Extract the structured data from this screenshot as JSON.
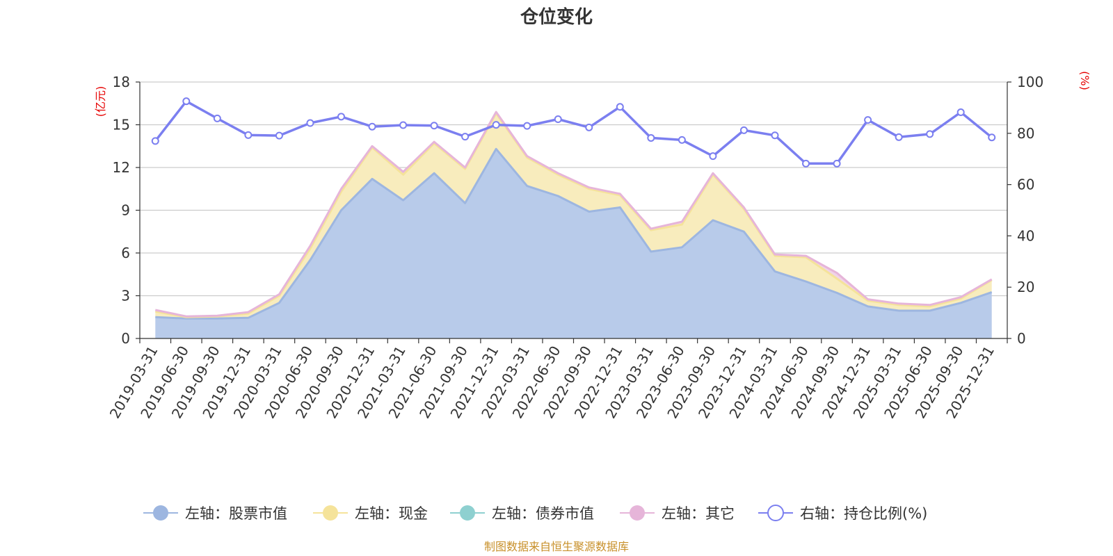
{
  "colors": {
    "stock": "#9db6e0",
    "stock_fill": "#b8cbea",
    "cash": "#f5e39a",
    "cash_fill": "#f8ecbd",
    "bond": "#8ed0d0",
    "other": "#e6b5d9",
    "ratio": "#7b7ff0",
    "grid": "#cccccc",
    "axis": "#333333",
    "unit": "#e60000",
    "source": "#c8902a"
  },
  "chart_data": {
    "type": "area",
    "title": "仓位变化",
    "left_unit": "(亿元)",
    "right_unit": "(%)",
    "left_axis": {
      "min": 0,
      "max": 18,
      "ticks": [
        "0",
        "3",
        "6",
        "9",
        "12",
        "15",
        "18"
      ]
    },
    "right_axis": {
      "min": 0,
      "max": 100,
      "ticks": [
        "0",
        "20",
        "40",
        "60",
        "80",
        "100"
      ]
    },
    "categories": [
      "2019-03-31",
      "2019-06-30",
      "2019-09-30",
      "2019-12-31",
      "2020-03-31",
      "2020-06-30",
      "2020-09-30",
      "2020-12-31",
      "2021-03-31",
      "2021-06-30",
      "2021-09-30",
      "2021-12-31",
      "2022-03-31",
      "2022-06-30",
      "2022-09-30",
      "2022-12-31",
      "2023-03-31",
      "2023-06-30",
      "2023-09-30",
      "2023-12-31",
      "2024-03-31",
      "2024-06-30",
      "2024-09-30",
      "2024-12-31",
      "2025-03-31",
      "2025-06-30",
      "2025-09-30",
      "2025-12-31"
    ],
    "series": [
      {
        "name": "左轴：股票市值",
        "axis": "left",
        "kind": "stacked-area",
        "values": [
          1.5,
          1.4,
          1.4,
          1.45,
          2.5,
          5.5,
          9.0,
          11.2,
          9.7,
          11.6,
          9.5,
          13.3,
          10.7,
          10.0,
          8.9,
          9.2,
          6.1,
          6.4,
          8.3,
          7.5,
          4.7,
          4.0,
          3.2,
          2.25,
          1.95,
          1.95,
          2.5,
          3.25
        ]
      },
      {
        "name": "左轴：现金",
        "axis": "left",
        "kind": "stacked-area",
        "values": [
          0.4,
          0.1,
          0.15,
          0.3,
          0.5,
          0.8,
          1.3,
          2.2,
          1.8,
          2.1,
          2.4,
          2.5,
          2.0,
          1.5,
          1.6,
          0.85,
          1.5,
          1.6,
          3.2,
          1.6,
          1.1,
          1.7,
          1.0,
          0.4,
          0.4,
          0.3,
          0.3,
          0.85
        ]
      },
      {
        "name": "左轴：债券市值",
        "axis": "left",
        "kind": "stacked-area",
        "values": [
          0,
          0,
          0,
          0,
          0,
          0,
          0,
          0,
          0,
          0,
          0,
          0,
          0,
          0,
          0,
          0,
          0,
          0,
          0,
          0,
          0,
          0,
          0,
          0,
          0,
          0,
          0,
          0
        ]
      },
      {
        "name": "左轴：其它",
        "axis": "left",
        "kind": "stacked-area",
        "values": [
          0.1,
          0.05,
          0.05,
          0.1,
          0.1,
          0.2,
          0.2,
          0.1,
          0.2,
          0.1,
          0.1,
          0.1,
          0.1,
          0.1,
          0.1,
          0.1,
          0.1,
          0.2,
          0.1,
          0.1,
          0.1,
          0.1,
          0.4,
          0.1,
          0.1,
          0.1,
          0.1,
          0.05
        ]
      },
      {
        "name": "右轴：持仓比例(%)",
        "axis": "right",
        "kind": "line",
        "values": [
          77,
          92.5,
          85.8,
          79.3,
          79.1,
          84,
          86.5,
          82.6,
          83.2,
          83,
          78.7,
          83.3,
          82.9,
          85.5,
          82.3,
          90.3,
          78.2,
          77.4,
          71.1,
          81.2,
          79.2,
          68.2,
          68.2,
          85.2,
          78.5,
          79.7,
          88.2,
          78.4
        ]
      }
    ],
    "legend_position": "bottom",
    "grid": true
  },
  "footer": {
    "source": "制图数据来自恒生聚源数据库"
  }
}
